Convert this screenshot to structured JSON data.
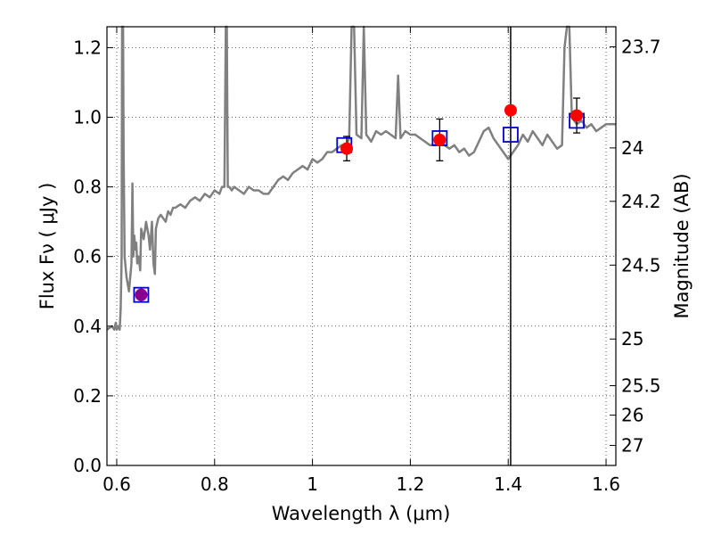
{
  "chart_data": {
    "type": "line",
    "xlabel": "Wavelength  λ (μm)",
    "ylabel_left": "Flux  Fν  ( μJy )",
    "ylabel_right": "Magnitude (AB)",
    "xlim": [
      0.58,
      1.62
    ],
    "ylim": [
      0.0,
      1.26
    ],
    "x_ticks": [
      0.6,
      0.8,
      1.0,
      1.2,
      1.4,
      1.6
    ],
    "x_tick_labels": [
      "0.6",
      "0.8",
      "1",
      "1.2",
      "1.4",
      "1.6"
    ],
    "y_ticks": [
      0.0,
      0.2,
      0.4,
      0.6,
      0.8,
      1.0,
      1.2
    ],
    "y_tick_labels": [
      "0.0",
      "0.2",
      "0.4",
      "0.6",
      "0.8",
      "1.0",
      "1.2"
    ],
    "mag_ticks": [
      23.7,
      24,
      24.2,
      24.5,
      25,
      25.5,
      26,
      27
    ],
    "mag_tick_labels": [
      "23.7",
      "24",
      "24.2",
      "24.5",
      "25",
      "25.5",
      "26",
      "27"
    ],
    "grid": true,
    "vertical_line_x": 1.405,
    "colors": {
      "spectrum": "#808080",
      "model_points": "#0000cc",
      "observed_points": "#ff0000",
      "overlap_points": "#8b008b",
      "errorbars": "#000000",
      "vline": "#000000",
      "grid": "#000000"
    },
    "series": [
      {
        "kind": "spectrum",
        "x": [
          0.58,
          0.59,
          0.595,
          0.598,
          0.6,
          0.603,
          0.606,
          0.608,
          0.61,
          0.611,
          0.612,
          0.613,
          0.614,
          0.616,
          0.62,
          0.625,
          0.63,
          0.632,
          0.634,
          0.636,
          0.638,
          0.64,
          0.642,
          0.645,
          0.648,
          0.65,
          0.655,
          0.66,
          0.665,
          0.668,
          0.672,
          0.675,
          0.678,
          0.68,
          0.685,
          0.69,
          0.695,
          0.7,
          0.705,
          0.71,
          0.715,
          0.72,
          0.73,
          0.74,
          0.75,
          0.76,
          0.77,
          0.78,
          0.79,
          0.8,
          0.81,
          0.815,
          0.82,
          0.823,
          0.825,
          0.827,
          0.83,
          0.835,
          0.84,
          0.85,
          0.86,
          0.87,
          0.88,
          0.89,
          0.9,
          0.91,
          0.92,
          0.93,
          0.94,
          0.95,
          0.96,
          0.97,
          0.98,
          0.99,
          1.0,
          1.01,
          1.02,
          1.03,
          1.04,
          1.05,
          1.06,
          1.07,
          1.075,
          1.08,
          1.085,
          1.09,
          1.1,
          1.105,
          1.11,
          1.12,
          1.13,
          1.14,
          1.15,
          1.16,
          1.17,
          1.175,
          1.18,
          1.185,
          1.19,
          1.2,
          1.21,
          1.22,
          1.23,
          1.24,
          1.25,
          1.26,
          1.27,
          1.28,
          1.29,
          1.3,
          1.31,
          1.32,
          1.33,
          1.34,
          1.35,
          1.36,
          1.37,
          1.38,
          1.39,
          1.4,
          1.41,
          1.42,
          1.43,
          1.44,
          1.45,
          1.46,
          1.47,
          1.48,
          1.49,
          1.5,
          1.51,
          1.515,
          1.52,
          1.525,
          1.53,
          1.54,
          1.55,
          1.56,
          1.57,
          1.58,
          1.59,
          1.6,
          1.61,
          1.62
        ],
        "y": [
          0.39,
          0.4,
          0.39,
          0.41,
          0.39,
          0.4,
          0.39,
          0.45,
          0.6,
          1.26,
          1.26,
          1.26,
          0.9,
          0.6,
          0.54,
          0.5,
          0.58,
          0.81,
          0.6,
          0.66,
          0.62,
          0.64,
          0.58,
          0.6,
          0.56,
          0.68,
          0.65,
          0.7,
          0.66,
          0.62,
          0.7,
          0.58,
          0.55,
          0.68,
          0.71,
          0.72,
          0.71,
          0.7,
          0.73,
          0.72,
          0.74,
          0.74,
          0.75,
          0.74,
          0.76,
          0.77,
          0.76,
          0.78,
          0.77,
          0.79,
          0.78,
          0.8,
          0.8,
          1.26,
          1.26,
          0.8,
          0.8,
          0.79,
          0.8,
          0.79,
          0.78,
          0.8,
          0.79,
          0.79,
          0.78,
          0.78,
          0.8,
          0.82,
          0.83,
          0.82,
          0.84,
          0.85,
          0.86,
          0.85,
          0.88,
          0.87,
          0.88,
          0.9,
          0.9,
          0.91,
          0.92,
          0.92,
          0.94,
          1.26,
          1.26,
          0.95,
          0.94,
          1.26,
          0.95,
          0.93,
          0.96,
          0.95,
          0.96,
          0.95,
          0.94,
          1.12,
          0.94,
          0.95,
          0.96,
          0.95,
          0.95,
          0.94,
          0.93,
          0.92,
          0.92,
          0.93,
          0.92,
          0.91,
          0.92,
          0.9,
          0.91,
          0.89,
          0.9,
          0.93,
          0.96,
          0.97,
          0.94,
          0.92,
          0.9,
          0.88,
          0.9,
          0.92,
          0.95,
          0.93,
          0.96,
          0.94,
          0.92,
          0.95,
          0.93,
          0.91,
          0.92,
          1.2,
          1.26,
          1.26,
          1.0,
          0.98,
          0.99,
          0.97,
          0.98,
          0.96,
          0.97,
          0.98,
          0.98,
          0.98
        ]
      }
    ],
    "model_points": [
      {
        "x": 0.65,
        "y": 0.49
      },
      {
        "x": 1.065,
        "y": 0.92
      },
      {
        "x": 1.26,
        "y": 0.94
      },
      {
        "x": 1.405,
        "y": 0.95
      },
      {
        "x": 1.54,
        "y": 0.99
      }
    ],
    "observed_points": [
      {
        "x": 0.65,
        "y": 0.49,
        "err": 0.02
      },
      {
        "x": 1.07,
        "y": 0.91,
        "err": 0.035
      },
      {
        "x": 1.26,
        "y": 0.935,
        "err": 0.06
      },
      {
        "x": 1.405,
        "y": 1.02,
        "err": 0.0
      },
      {
        "x": 1.54,
        "y": 1.005,
        "err": 0.05
      }
    ]
  }
}
